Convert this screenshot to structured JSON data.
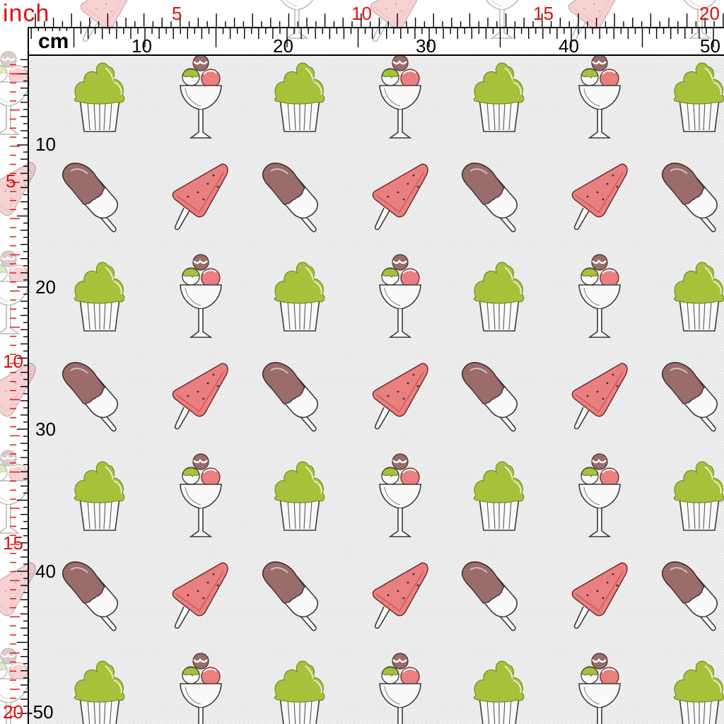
{
  "ruler": {
    "inch_label": "inch",
    "cm_label": "cm",
    "inch_ticks_top": [
      "5",
      "10",
      "15",
      "20"
    ],
    "cm_ticks_top": [
      "10",
      "20",
      "30",
      "40",
      "50"
    ],
    "cm_ticks_left": [
      "10",
      "20",
      "30",
      "40",
      "-50"
    ],
    "inch_ticks_left": [
      "5",
      "10",
      "15",
      "20"
    ]
  },
  "colors": {
    "ruler_inch": "#e01010",
    "ruler_cm": "#000000",
    "fabric_background": "#f1f1f1",
    "cupcake_frosting": "#a6c23a",
    "chocolate_coating": "#9a6c6a",
    "watermelon": "#ea7f80",
    "outline": "#3a3a3a"
  },
  "motifs": [
    "cupcake-icon",
    "ice-cream-sundae-icon",
    "chocolate-popsicle-icon",
    "watermelon-popsicle-icon"
  ]
}
